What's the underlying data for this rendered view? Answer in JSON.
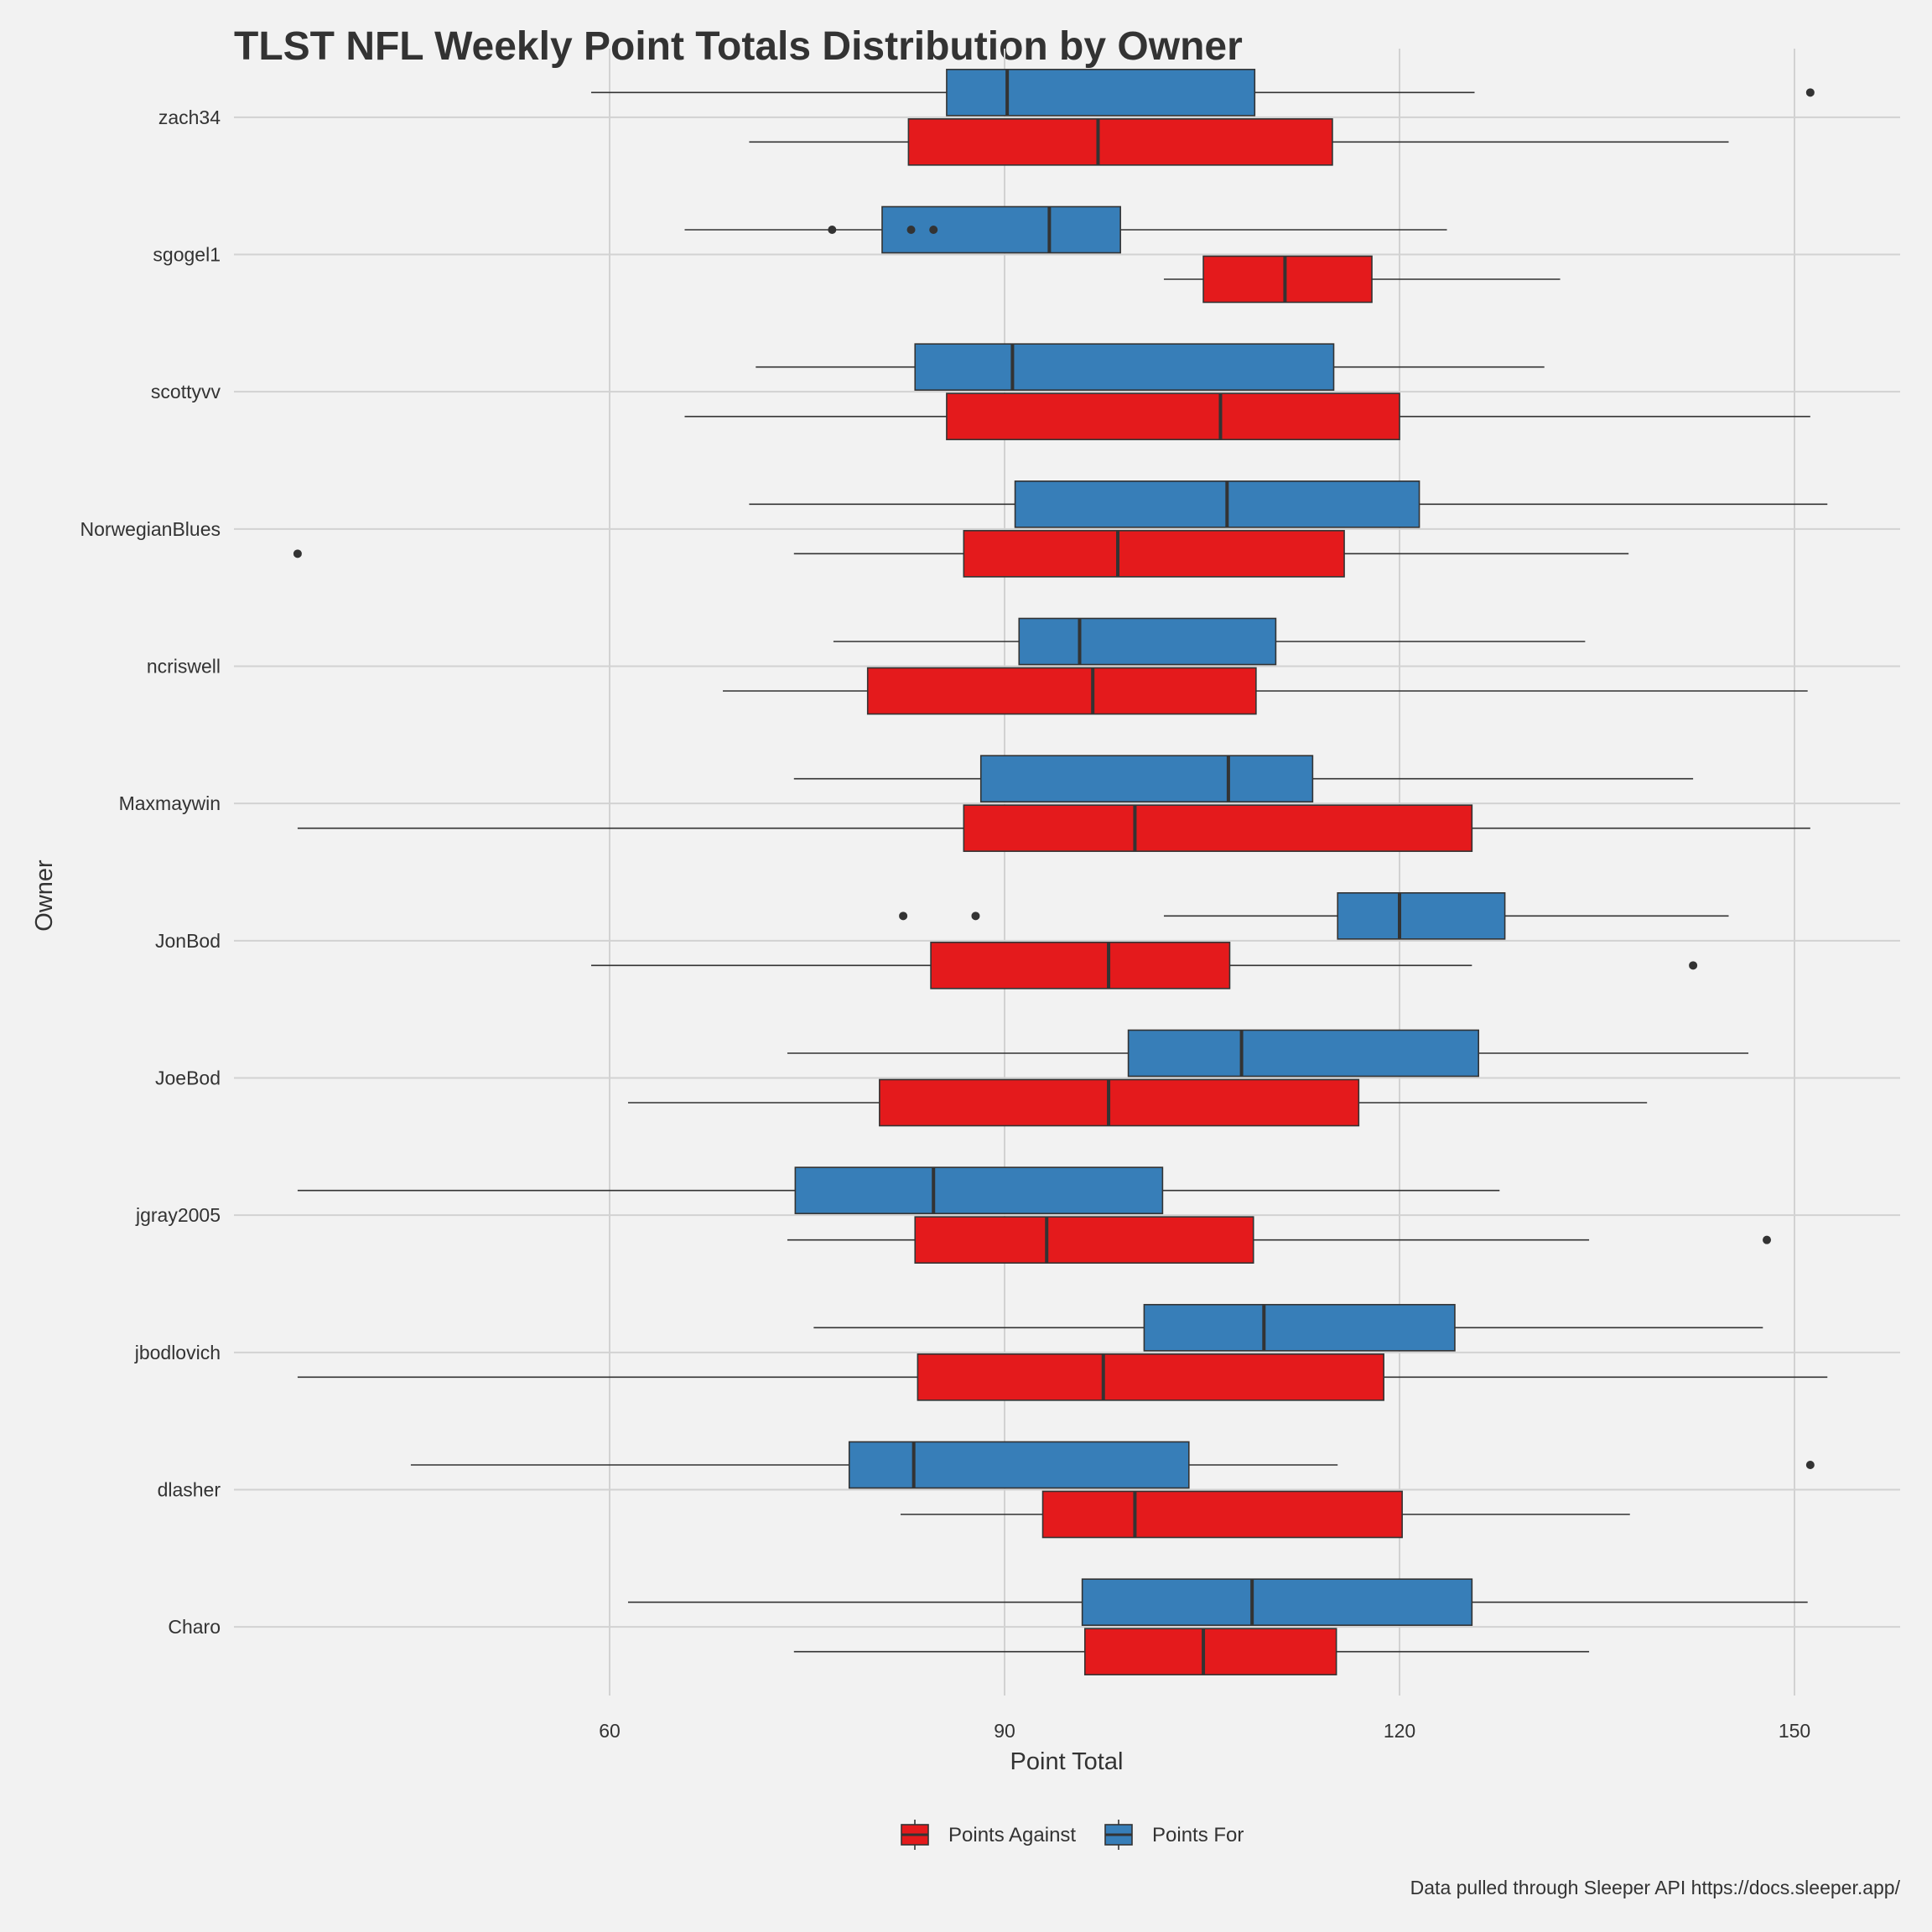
{
  "chart_data": {
    "type": "boxplot",
    "orientation": "horizontal",
    "title": "TLST NFL Weekly Point Totals Distribution by Owner",
    "xlabel": "Point Total",
    "ylabel": "Owner",
    "xlim": [
      30,
      158
    ],
    "xticks": [
      60,
      90,
      120,
      150
    ],
    "grid": true,
    "legend_position": "bottom",
    "caption": "Data pulled through Sleeper API https://docs.sleeper.app/",
    "colors": {
      "Points Against": "#e41a1c",
      "Points For": "#377eb8"
    },
    "categories": [
      "Charo",
      "dlasher",
      "jbodlovich",
      "jgray2005",
      "JoeBod",
      "JonBod",
      "Maxmaywin",
      "ncriswell",
      "NorwegianBlues",
      "scottyvv",
      "sgogel1",
      "zach34"
    ],
    "series": [
      {
        "name": "Points For",
        "boxes": [
          {
            "whisker_low": 61.4,
            "q1": 95.9,
            "median": 108.8,
            "q3": 125.5,
            "whisker_high": 151.0,
            "outliers": []
          },
          {
            "whisker_low": 44.9,
            "q1": 78.2,
            "median": 83.1,
            "q3": 104.0,
            "whisker_high": 115.3,
            "outliers": [
              151.2
            ]
          },
          {
            "whisker_low": 75.5,
            "q1": 100.6,
            "median": 109.7,
            "q3": 124.2,
            "whisker_high": 147.6,
            "outliers": []
          },
          {
            "whisker_low": 36.3,
            "q1": 74.1,
            "median": 84.6,
            "q3": 102.0,
            "whisker_high": 127.6,
            "outliers": []
          },
          {
            "whisker_low": 73.5,
            "q1": 99.4,
            "median": 108.0,
            "q3": 126.0,
            "whisker_high": 146.5,
            "outliers": []
          },
          {
            "whisker_low": 102.1,
            "q1": 115.3,
            "median": 120.0,
            "q3": 128.0,
            "whisker_high": 145.0,
            "outliers": [
              82.3,
              87.8
            ]
          },
          {
            "whisker_low": 74.0,
            "q1": 88.2,
            "median": 107.0,
            "q3": 113.4,
            "whisker_high": 142.3,
            "outliers": []
          },
          {
            "whisker_low": 77.0,
            "q1": 91.1,
            "median": 95.7,
            "q3": 110.6,
            "whisker_high": 134.1,
            "outliers": []
          },
          {
            "whisker_low": 70.6,
            "q1": 90.8,
            "median": 106.9,
            "q3": 121.5,
            "whisker_high": 152.5,
            "outliers": []
          },
          {
            "whisker_low": 71.1,
            "q1": 83.2,
            "median": 90.6,
            "q3": 115.0,
            "whisker_high": 131.0,
            "outliers": []
          },
          {
            "whisker_low": 65.7,
            "q1": 80.7,
            "median": 93.4,
            "q3": 98.8,
            "whisker_high": 123.6,
            "outliers": [
              76.9,
              82.9,
              84.6
            ]
          },
          {
            "whisker_low": 58.6,
            "q1": 85.6,
            "median": 90.2,
            "q3": 109.0,
            "whisker_high": 125.7,
            "outliers": [
              151.2
            ]
          }
        ]
      },
      {
        "name": "Points Against",
        "boxes": [
          {
            "whisker_low": 74.0,
            "q1": 96.1,
            "median": 105.1,
            "q3": 115.2,
            "whisker_high": 134.4,
            "outliers": []
          },
          {
            "whisker_low": 82.1,
            "q1": 92.9,
            "median": 99.9,
            "q3": 120.2,
            "whisker_high": 137.5,
            "outliers": []
          },
          {
            "whisker_low": 36.3,
            "q1": 83.4,
            "median": 97.5,
            "q3": 118.8,
            "whisker_high": 152.5,
            "outliers": []
          },
          {
            "whisker_low": 73.5,
            "q1": 83.2,
            "median": 93.2,
            "q3": 108.9,
            "whisker_high": 134.4,
            "outliers": [
              147.9
            ]
          },
          {
            "whisker_low": 61.4,
            "q1": 80.5,
            "median": 97.9,
            "q3": 116.9,
            "whisker_high": 138.8,
            "outliers": []
          },
          {
            "whisker_low": 58.6,
            "q1": 84.4,
            "median": 97.9,
            "q3": 107.1,
            "whisker_high": 125.5,
            "outliers": [
              142.3
            ]
          },
          {
            "whisker_low": 36.3,
            "q1": 86.9,
            "median": 99.9,
            "q3": 125.5,
            "whisker_high": 151.2,
            "outliers": []
          },
          {
            "whisker_low": 68.6,
            "q1": 79.6,
            "median": 96.7,
            "q3": 109.1,
            "whisker_high": 151.0,
            "outliers": []
          },
          {
            "whisker_low": 74.0,
            "q1": 86.9,
            "median": 98.6,
            "q3": 115.8,
            "whisker_high": 137.4,
            "outliers": [
              36.3
            ]
          },
          {
            "whisker_low": 65.7,
            "q1": 85.6,
            "median": 106.4,
            "q3": 120.0,
            "whisker_high": 151.2,
            "outliers": []
          },
          {
            "whisker_low": 102.1,
            "q1": 105.1,
            "median": 111.3,
            "q3": 117.9,
            "whisker_high": 132.2,
            "outliers": []
          },
          {
            "whisker_low": 70.6,
            "q1": 82.7,
            "median": 97.1,
            "q3": 114.9,
            "whisker_high": 145.0,
            "outliers": []
          }
        ]
      }
    ]
  }
}
